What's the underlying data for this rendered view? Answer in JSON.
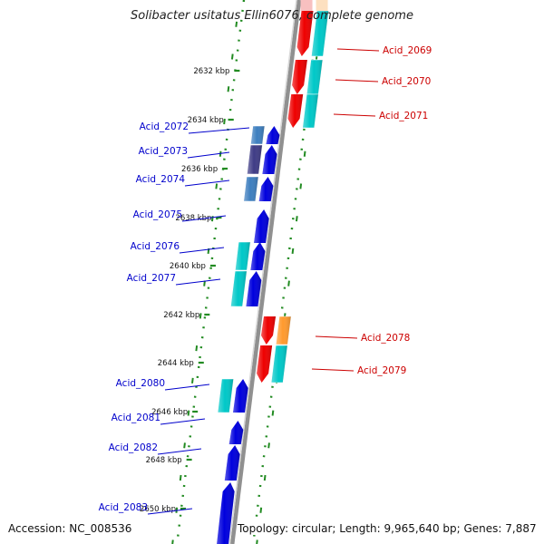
{
  "title": "Solibacter usitatus Ellin6076, complete genome",
  "accession": "Accession: NC_008536",
  "topology": "Topology: circular; Length: 9,965,640 bp; Genes: 7,887",
  "colors": {
    "forward_gene": "#ee0000",
    "reverse_gene": "#0000dd",
    "cog_cyan": "#00c8c8",
    "cog_steel": "#3e7fbf",
    "cog_indigo": "#3f3c86",
    "cog_orange": "#ff9a2e",
    "cog_pink": "#f8c0c0",
    "axis_dots": "#228b22",
    "backbone": "#909090"
  },
  "ticks": [
    {
      "label": "2632 kbp"
    },
    {
      "label": "2634 kbp"
    },
    {
      "label": "2636 kbp"
    },
    {
      "label": "2638 kbp"
    },
    {
      "label": "2640 kbp"
    },
    {
      "label": "2642 kbp"
    },
    {
      "label": "2644 kbp"
    },
    {
      "label": "2646 kbp"
    },
    {
      "label": "2648 kbp"
    },
    {
      "label": "2650 kbp"
    }
  ],
  "genes": [
    {
      "label": "Acid_2069",
      "strand": "forward",
      "cog": "cyan"
    },
    {
      "label": "Acid_2070",
      "strand": "forward",
      "cog": "cyan"
    },
    {
      "label": "Acid_2071",
      "strand": "forward",
      "cog": "cyan"
    },
    {
      "label": "Acid_2072",
      "strand": "reverse",
      "cog": "steel"
    },
    {
      "label": "Acid_2073",
      "strand": "reverse",
      "cog": "indigo"
    },
    {
      "label": "Acid_2074",
      "strand": "reverse",
      "cog": "steel"
    },
    {
      "label": "Acid_2075",
      "strand": "reverse",
      "cog": "none"
    },
    {
      "label": "Acid_2076",
      "strand": "reverse",
      "cog": "cyan"
    },
    {
      "label": "Acid_2077",
      "strand": "reverse",
      "cog": "cyan"
    },
    {
      "label": "Acid_2078",
      "strand": "forward",
      "cog": "orange"
    },
    {
      "label": "Acid_2079",
      "strand": "forward",
      "cog": "cyan"
    },
    {
      "label": "Acid_2080",
      "strand": "reverse",
      "cog": "cyan"
    },
    {
      "label": "Acid_2081",
      "strand": "reverse",
      "cog": "none"
    },
    {
      "label": "Acid_2082",
      "strand": "reverse",
      "cog": "none"
    },
    {
      "label": "Acid_2083",
      "strand": "reverse",
      "cog": "none"
    }
  ]
}
